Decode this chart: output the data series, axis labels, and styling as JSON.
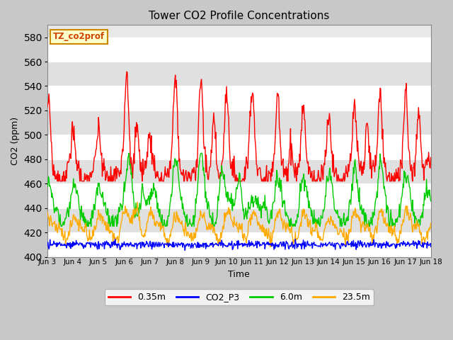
{
  "title": "Tower CO2 Profile Concentrations",
  "xlabel": "Time",
  "ylabel": "CO2 (ppm)",
  "ylim": [
    400,
    590
  ],
  "yticks": [
    400,
    420,
    440,
    460,
    480,
    500,
    520,
    540,
    560,
    580
  ],
  "annotation_text": "TZ_co2prof",
  "annotation_bg": "#ffffcc",
  "annotation_edge": "#cc8800",
  "series_colors": {
    "0.35m": "#ff0000",
    "CO2_P3": "#0000ff",
    "6.0m": "#00cc00",
    "23.5m": "#ffaa00"
  },
  "stripe_colors": [
    "#ffffff",
    "#e0e0e0"
  ],
  "fig_bg": "#c8c8c8",
  "plot_bg": "#e8e8e8",
  "line_width": 1.0,
  "figsize": [
    6.4,
    4.8
  ],
  "dpi": 100,
  "xtick_labels": [
    "Jun 3",
    "Jun 4",
    "Jun 5",
    "Jun 6",
    "Jun 7",
    "Jun 8",
    "Jun 9",
    "Jun 10",
    "Jun 11",
    "Jun 12",
    "Jun 13",
    "Jun 14",
    "Jun 15",
    "Jun 16",
    "Jun 17",
    "Jun 18"
  ]
}
